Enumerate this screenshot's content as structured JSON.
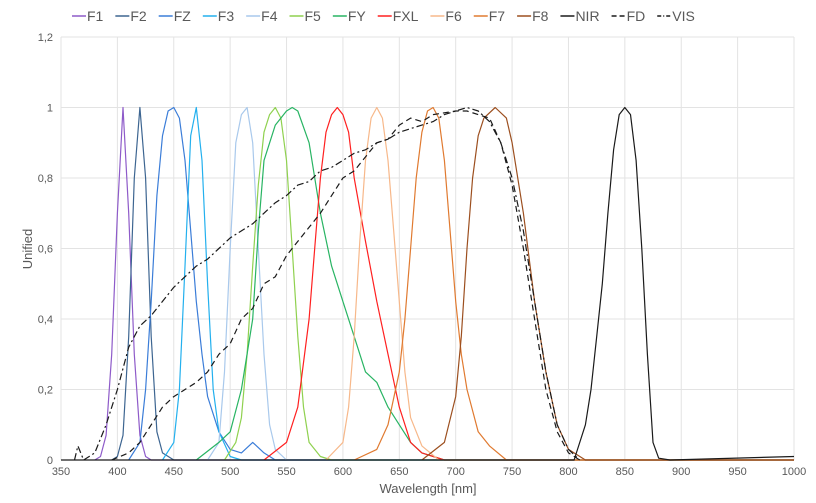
{
  "chart_data": {
    "type": "line",
    "title": "",
    "xlabel": "Wavelength [nm]",
    "ylabel": "Unified",
    "xlim": [
      350,
      1000
    ],
    "ylim": [
      0,
      1.2
    ],
    "xticks": [
      350,
      400,
      450,
      500,
      550,
      600,
      650,
      700,
      750,
      800,
      850,
      900,
      950,
      1000
    ],
    "yticks": [
      {
        "v": 0,
        "label": "0"
      },
      {
        "v": 0.2,
        "label": "0,2"
      },
      {
        "v": 0.4,
        "label": "0,4"
      },
      {
        "v": 0.6,
        "label": "0,6"
      },
      {
        "v": 0.8,
        "label": "0,8"
      },
      {
        "v": 1,
        "label": "1"
      },
      {
        "v": 1.2,
        "label": "1,2"
      }
    ],
    "grid": true,
    "legend_position": "top",
    "series": [
      {
        "name": "F1",
        "color": "#8e5bc9",
        "dash": "",
        "points": [
          [
            380,
            0
          ],
          [
            385,
            0.01
          ],
          [
            390,
            0.07
          ],
          [
            395,
            0.3
          ],
          [
            400,
            0.7
          ],
          [
            405,
            1
          ],
          [
            410,
            0.7
          ],
          [
            415,
            0.3
          ],
          [
            420,
            0.07
          ],
          [
            425,
            0.01
          ],
          [
            430,
            0
          ],
          [
            1000,
            0
          ]
        ]
      },
      {
        "name": "F2",
        "color": "#3d6591",
        "dash": "",
        "points": [
          [
            395,
            0
          ],
          [
            400,
            0.01
          ],
          [
            405,
            0.07
          ],
          [
            410,
            0.35
          ],
          [
            415,
            0.8
          ],
          [
            420,
            1
          ],
          [
            425,
            0.8
          ],
          [
            430,
            0.35
          ],
          [
            435,
            0.08
          ],
          [
            440,
            0.02
          ],
          [
            450,
            0
          ],
          [
            1000,
            0
          ]
        ]
      },
      {
        "name": "FZ",
        "color": "#3b7dd8",
        "dash": "",
        "points": [
          [
            410,
            0
          ],
          [
            420,
            0.05
          ],
          [
            425,
            0.2
          ],
          [
            430,
            0.45
          ],
          [
            435,
            0.75
          ],
          [
            440,
            0.92
          ],
          [
            445,
            0.99
          ],
          [
            450,
            1
          ],
          [
            455,
            0.97
          ],
          [
            460,
            0.85
          ],
          [
            465,
            0.65
          ],
          [
            470,
            0.45
          ],
          [
            475,
            0.3
          ],
          [
            480,
            0.18
          ],
          [
            490,
            0.08
          ],
          [
            500,
            0.03
          ],
          [
            510,
            0.02
          ],
          [
            520,
            0.05
          ],
          [
            530,
            0.02
          ],
          [
            540,
            0
          ],
          [
            1000,
            0
          ]
        ]
      },
      {
        "name": "F3",
        "color": "#23b0ee",
        "dash": "",
        "points": [
          [
            440,
            0
          ],
          [
            450,
            0.05
          ],
          [
            455,
            0.2
          ],
          [
            460,
            0.55
          ],
          [
            465,
            0.92
          ],
          [
            470,
            1
          ],
          [
            475,
            0.85
          ],
          [
            480,
            0.5
          ],
          [
            485,
            0.2
          ],
          [
            490,
            0.08
          ],
          [
            500,
            0.01
          ],
          [
            510,
            0
          ],
          [
            1000,
            0
          ]
        ]
      },
      {
        "name": "F4",
        "color": "#a9c9ec",
        "dash": "",
        "points": [
          [
            480,
            0
          ],
          [
            490,
            0.05
          ],
          [
            495,
            0.25
          ],
          [
            500,
            0.6
          ],
          [
            505,
            0.9
          ],
          [
            510,
            0.98
          ],
          [
            515,
            1
          ],
          [
            520,
            0.9
          ],
          [
            525,
            0.6
          ],
          [
            530,
            0.3
          ],
          [
            535,
            0.1
          ],
          [
            540,
            0.03
          ],
          [
            550,
            0
          ],
          [
            1000,
            0
          ]
        ]
      },
      {
        "name": "F5",
        "color": "#8fd14f",
        "dash": "",
        "points": [
          [
            495,
            0
          ],
          [
            505,
            0.05
          ],
          [
            510,
            0.12
          ],
          [
            515,
            0.3
          ],
          [
            520,
            0.55
          ],
          [
            525,
            0.78
          ],
          [
            530,
            0.93
          ],
          [
            535,
            0.98
          ],
          [
            540,
            1
          ],
          [
            545,
            0.97
          ],
          [
            550,
            0.85
          ],
          [
            555,
            0.6
          ],
          [
            560,
            0.35
          ],
          [
            565,
            0.15
          ],
          [
            570,
            0.05
          ],
          [
            580,
            0.01
          ],
          [
            590,
            0
          ],
          [
            1000,
            0
          ]
        ]
      },
      {
        "name": "FY",
        "color": "#28b463",
        "dash": "",
        "points": [
          [
            470,
            0
          ],
          [
            490,
            0.05
          ],
          [
            500,
            0.08
          ],
          [
            510,
            0.2
          ],
          [
            520,
            0.4
          ],
          [
            525,
            0.65
          ],
          [
            530,
            0.85
          ],
          [
            540,
            0.95
          ],
          [
            550,
            0.99
          ],
          [
            555,
            1
          ],
          [
            560,
            0.99
          ],
          [
            570,
            0.9
          ],
          [
            580,
            0.7
          ],
          [
            590,
            0.55
          ],
          [
            600,
            0.45
          ],
          [
            610,
            0.35
          ],
          [
            620,
            0.25
          ],
          [
            630,
            0.22
          ],
          [
            640,
            0.15
          ],
          [
            650,
            0.1
          ],
          [
            660,
            0.05
          ],
          [
            670,
            0.02
          ],
          [
            690,
            0
          ],
          [
            1000,
            0
          ]
        ]
      },
      {
        "name": "FXL",
        "color": "#ff2020",
        "dash": "",
        "points": [
          [
            530,
            0
          ],
          [
            550,
            0.05
          ],
          [
            560,
            0.15
          ],
          [
            570,
            0.4
          ],
          [
            575,
            0.6
          ],
          [
            580,
            0.8
          ],
          [
            585,
            0.93
          ],
          [
            590,
            0.98
          ],
          [
            595,
            1
          ],
          [
            600,
            0.98
          ],
          [
            605,
            0.93
          ],
          [
            610,
            0.8
          ],
          [
            620,
            0.62
          ],
          [
            630,
            0.45
          ],
          [
            640,
            0.3
          ],
          [
            650,
            0.15
          ],
          [
            660,
            0.05
          ],
          [
            670,
            0.02
          ],
          [
            690,
            0
          ],
          [
            1000,
            0
          ]
        ]
      },
      {
        "name": "F6",
        "color": "#f7b88a",
        "dash": "",
        "points": [
          [
            585,
            0
          ],
          [
            600,
            0.05
          ],
          [
            605,
            0.15
          ],
          [
            610,
            0.35
          ],
          [
            615,
            0.62
          ],
          [
            620,
            0.85
          ],
          [
            625,
            0.97
          ],
          [
            630,
            1
          ],
          [
            635,
            0.97
          ],
          [
            640,
            0.85
          ],
          [
            645,
            0.65
          ],
          [
            650,
            0.45
          ],
          [
            655,
            0.25
          ],
          [
            660,
            0.12
          ],
          [
            670,
            0.04
          ],
          [
            685,
            0
          ],
          [
            1000,
            0
          ]
        ]
      },
      {
        "name": "F7",
        "color": "#e07a30",
        "dash": "",
        "points": [
          [
            610,
            0
          ],
          [
            630,
            0.03
          ],
          [
            640,
            0.1
          ],
          [
            650,
            0.25
          ],
          [
            655,
            0.4
          ],
          [
            660,
            0.6
          ],
          [
            665,
            0.8
          ],
          [
            670,
            0.93
          ],
          [
            675,
            0.99
          ],
          [
            680,
            1
          ],
          [
            685,
            0.97
          ],
          [
            690,
            0.85
          ],
          [
            695,
            0.65
          ],
          [
            700,
            0.45
          ],
          [
            705,
            0.3
          ],
          [
            710,
            0.2
          ],
          [
            720,
            0.08
          ],
          [
            730,
            0.04
          ],
          [
            745,
            0
          ],
          [
            1000,
            0
          ]
        ]
      },
      {
        "name": "F8",
        "color": "#9c4f1f",
        "dash": "",
        "points": [
          [
            670,
            0
          ],
          [
            690,
            0.05
          ],
          [
            700,
            0.18
          ],
          [
            705,
            0.35
          ],
          [
            710,
            0.6
          ],
          [
            715,
            0.8
          ],
          [
            720,
            0.92
          ],
          [
            725,
            0.97
          ],
          [
            735,
            1
          ],
          [
            745,
            0.97
          ],
          [
            750,
            0.9
          ],
          [
            760,
            0.7
          ],
          [
            770,
            0.45
          ],
          [
            780,
            0.25
          ],
          [
            790,
            0.1
          ],
          [
            800,
            0.03
          ],
          [
            815,
            0
          ],
          [
            1000,
            0
          ]
        ]
      },
      {
        "name": "NIR",
        "color": "#1a1a1a",
        "dash": "",
        "points": [
          [
            350,
            0
          ],
          [
            805,
            0
          ],
          [
            815,
            0.1
          ],
          [
            820,
            0.2
          ],
          [
            825,
            0.35
          ],
          [
            830,
            0.5
          ],
          [
            835,
            0.7
          ],
          [
            840,
            0.88
          ],
          [
            845,
            0.98
          ],
          [
            850,
            1
          ],
          [
            855,
            0.98
          ],
          [
            860,
            0.85
          ],
          [
            865,
            0.6
          ],
          [
            870,
            0.3
          ],
          [
            875,
            0.05
          ],
          [
            880,
            0.005
          ],
          [
            890,
            0
          ],
          [
            1000,
            0.01
          ]
        ]
      },
      {
        "name": "FD",
        "color": "#1a1a1a",
        "dash": "6,4",
        "points": [
          [
            395,
            0
          ],
          [
            410,
            0.02
          ],
          [
            420,
            0.05
          ],
          [
            430,
            0.1
          ],
          [
            440,
            0.15
          ],
          [
            450,
            0.18
          ],
          [
            460,
            0.2
          ],
          [
            470,
            0.22
          ],
          [
            480,
            0.25
          ],
          [
            490,
            0.3
          ],
          [
            500,
            0.33
          ],
          [
            510,
            0.4
          ],
          [
            520,
            0.43
          ],
          [
            530,
            0.5
          ],
          [
            540,
            0.52
          ],
          [
            550,
            0.58
          ],
          [
            560,
            0.62
          ],
          [
            570,
            0.66
          ],
          [
            580,
            0.7
          ],
          [
            590,
            0.75
          ],
          [
            600,
            0.8
          ],
          [
            610,
            0.82
          ],
          [
            620,
            0.86
          ],
          [
            630,
            0.9
          ],
          [
            640,
            0.91
          ],
          [
            650,
            0.95
          ],
          [
            660,
            0.97
          ],
          [
            670,
            0.96
          ],
          [
            680,
            0.98
          ],
          [
            700,
            0.99
          ],
          [
            710,
            0.99
          ],
          [
            720,
            0.98
          ],
          [
            730,
            0.97
          ],
          [
            740,
            0.9
          ],
          [
            750,
            0.78
          ],
          [
            760,
            0.6
          ],
          [
            770,
            0.4
          ],
          [
            780,
            0.2
          ],
          [
            790,
            0.08
          ],
          [
            800,
            0.02
          ],
          [
            810,
            0
          ]
        ]
      },
      {
        "name": "VIS",
        "color": "#1a1a1a",
        "dash": "7,3,2,3",
        "points": [
          [
            362,
            0
          ],
          [
            365,
            0.04
          ],
          [
            370,
            0
          ],
          [
            380,
            0.02
          ],
          [
            390,
            0.1
          ],
          [
            400,
            0.2
          ],
          [
            410,
            0.32
          ],
          [
            420,
            0.38
          ],
          [
            430,
            0.41
          ],
          [
            440,
            0.45
          ],
          [
            450,
            0.49
          ],
          [
            460,
            0.52
          ],
          [
            470,
            0.55
          ],
          [
            480,
            0.57
          ],
          [
            490,
            0.6
          ],
          [
            500,
            0.63
          ],
          [
            510,
            0.65
          ],
          [
            520,
            0.67
          ],
          [
            530,
            0.7
          ],
          [
            540,
            0.73
          ],
          [
            550,
            0.75
          ],
          [
            560,
            0.78
          ],
          [
            570,
            0.79
          ],
          [
            580,
            0.82
          ],
          [
            590,
            0.83
          ],
          [
            600,
            0.85
          ],
          [
            610,
            0.87
          ],
          [
            620,
            0.88
          ],
          [
            630,
            0.9
          ],
          [
            640,
            0.91
          ],
          [
            650,
            0.93
          ],
          [
            660,
            0.94
          ],
          [
            670,
            0.95
          ],
          [
            680,
            0.96
          ],
          [
            690,
            0.98
          ],
          [
            700,
            0.99
          ],
          [
            710,
            1
          ],
          [
            720,
            0.99
          ],
          [
            730,
            0.96
          ],
          [
            740,
            0.9
          ],
          [
            750,
            0.8
          ],
          [
            760,
            0.65
          ],
          [
            770,
            0.45
          ],
          [
            780,
            0.25
          ],
          [
            790,
            0.1
          ],
          [
            800,
            0.03
          ],
          [
            810,
            0
          ]
        ]
      }
    ]
  }
}
